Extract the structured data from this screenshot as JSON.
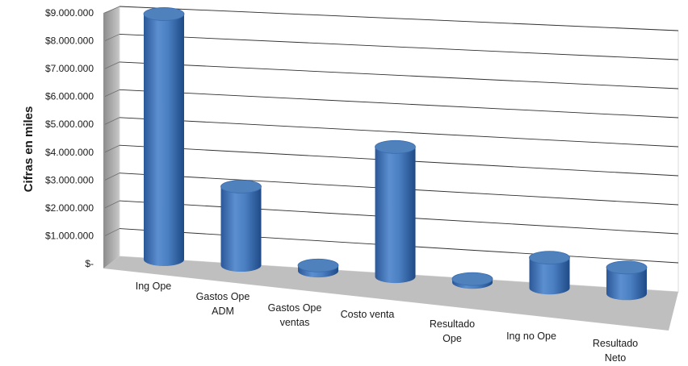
{
  "chart_data": {
    "type": "bar",
    "style": "3d-cylinder",
    "title": "",
    "xlabel": "",
    "ylabel": "Cifras en miles",
    "categories": [
      "Ing Ope",
      "Gastos Ope ADM",
      "Gastos Ope ventas",
      "Costo venta",
      "Resultado Ope",
      "Ing no Ope",
      "Resultado Neto"
    ],
    "category_lines": [
      [
        "Ing Ope"
      ],
      [
        "Gastos Ope",
        "ADM"
      ],
      [
        "Gastos Ope",
        "ventas"
      ],
      [
        "Costo venta"
      ],
      [
        "Resultado",
        "Ope"
      ],
      [
        "Ing no Ope"
      ],
      [
        "Resultado",
        "Neto"
      ]
    ],
    "values": [
      8900000,
      2850000,
      200000,
      4700000,
      120000,
      1100000,
      950000
    ],
    "ylim": [
      0,
      9000000
    ],
    "yticks": [
      0,
      1000000,
      2000000,
      3000000,
      4000000,
      5000000,
      6000000,
      7000000,
      8000000,
      9000000
    ],
    "ytick_labels": [
      "$-",
      "$1.000.000",
      "$2.000.000",
      "$3.000.000",
      "$4.000.000",
      "$5.000.000",
      "$6.000.000",
      "$7.000.000",
      "$8.000.000",
      "$9.000.000"
    ],
    "grid": true,
    "legend": "none",
    "colors": {
      "bar": "#4f81bd",
      "bar_dark": "#2b5797",
      "bar_light": "#8eb4e3",
      "wall": "#ffffff",
      "side_wall": "#a6a6a6",
      "floor": "#bfbfbf",
      "grid": "#2f2f2f"
    }
  }
}
